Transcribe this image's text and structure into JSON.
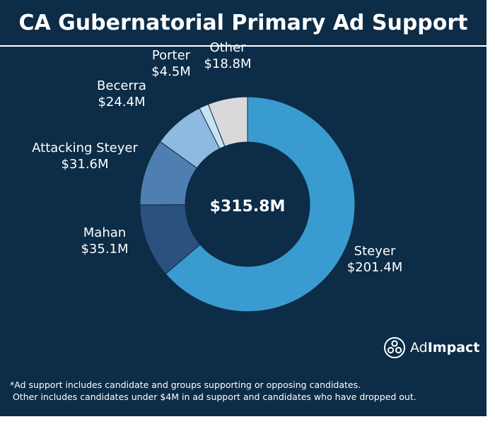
{
  "header": {
    "title": "CA Gubernatorial Primary Ad Support"
  },
  "chart_data": {
    "type": "pie",
    "variant": "donut",
    "title": "CA Gubernatorial Primary Ad Support",
    "total_label": "$315.8M",
    "total": 315.8,
    "unit": "$M",
    "slices": [
      {
        "name": "Steyer",
        "value": 201.4,
        "label": "$201.4M",
        "color": "#3a9bd0"
      },
      {
        "name": "Mahan",
        "value": 35.1,
        "label": "$35.1M",
        "color": "#2b527f"
      },
      {
        "name": "Attacking Steyer",
        "value": 31.6,
        "label": "$31.6M",
        "color": "#4f7fb0"
      },
      {
        "name": "Becerra",
        "value": 24.4,
        "label": "$24.4M",
        "color": "#8fb9de"
      },
      {
        "name": "Porter",
        "value": 4.5,
        "label": "$4.5M",
        "color": "#c7e3f3"
      },
      {
        "name": "Other",
        "value": 18.8,
        "label": "$18.8M",
        "color": "#d9d9d9"
      }
    ]
  },
  "logo": {
    "text_light": "Ad",
    "text_bold": "Impact"
  },
  "footnotes": [
    "*Ad support includes candidate and groups supporting or opposing candidates.",
    " Other includes candidates under $4M in ad support and candidates who have dropped out."
  ],
  "colors": {
    "background": "#0c2c47",
    "text": "#ffffff"
  }
}
